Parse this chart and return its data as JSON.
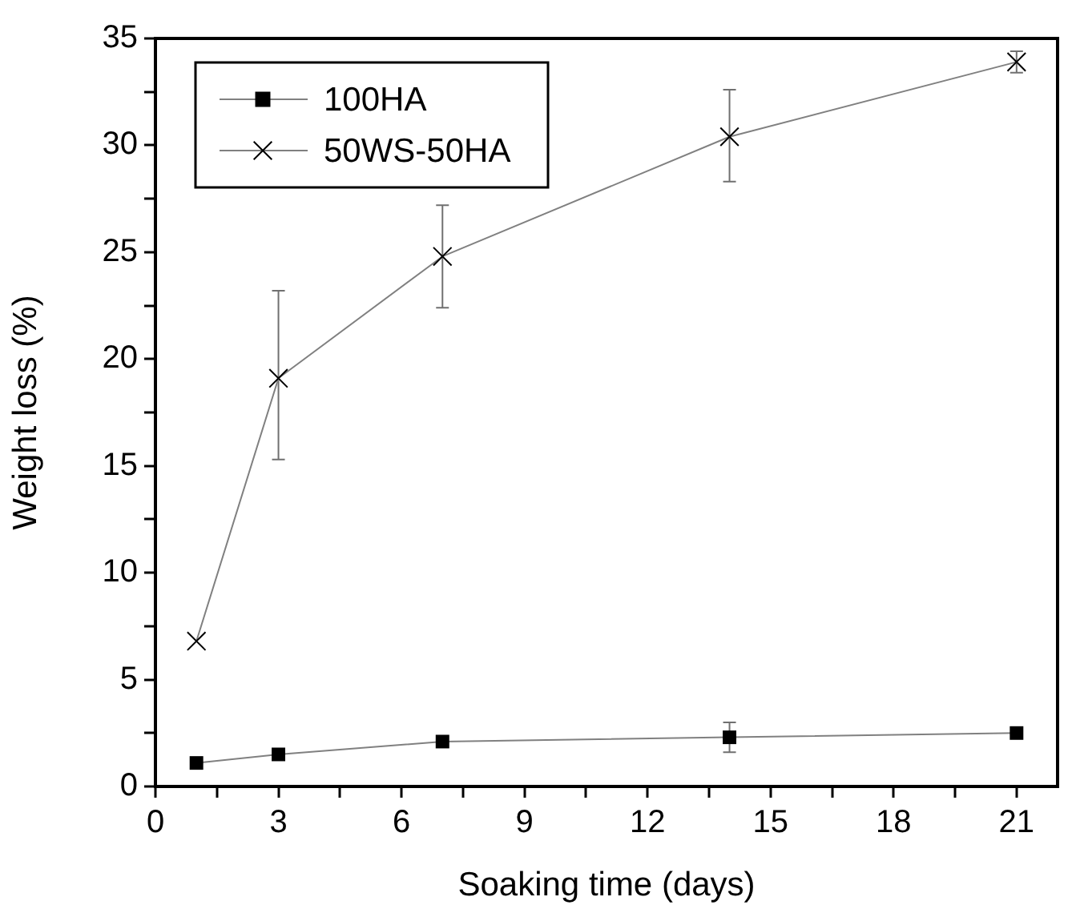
{
  "chart_data": {
    "type": "line",
    "xlabel": "Soaking time (days)",
    "ylabel": "Weight loss (%)",
    "x": [
      1,
      3,
      7,
      14,
      21
    ],
    "series": [
      {
        "name": "100HA",
        "color": "#000000",
        "marker": "square",
        "values": [
          1.1,
          1.5,
          2.1,
          2.3,
          2.5
        ],
        "errors": [
          null,
          null,
          null,
          [
            1.6,
            3.0
          ],
          null
        ]
      },
      {
        "name": "50WS-50HA",
        "color": "#000000",
        "marker": "cross",
        "values": [
          6.8,
          19.1,
          24.8,
          30.4,
          33.9
        ],
        "errors": [
          null,
          [
            15.3,
            23.2
          ],
          [
            22.4,
            27.2
          ],
          [
            28.3,
            32.6
          ],
          [
            33.4,
            34.4
          ]
        ]
      }
    ],
    "xlim": [
      0,
      22
    ],
    "xticks": [
      0,
      {
        "value": 1.5,
        "label": null
      },
      3,
      {
        "value": 4.5,
        "label": null
      },
      6,
      {
        "value": 7.5,
        "label": null
      },
      9,
      {
        "value": 10.5,
        "label": null
      },
      12,
      {
        "value": 13.5,
        "label": null
      },
      15,
      {
        "value": 16.5,
        "label": null
      },
      18,
      {
        "value": 19.5,
        "label": null
      },
      21
    ],
    "ylim": [
      0,
      35
    ],
    "yticks": [
      0,
      {
        "value": 2.5,
        "label": null
      },
      5,
      {
        "value": 7.5,
        "label": null
      },
      10,
      {
        "value": 12.5,
        "label": null
      },
      15,
      {
        "value": 17.5,
        "label": null
      },
      20,
      {
        "value": 22.5,
        "label": null
      },
      25,
      {
        "value": 27.5,
        "label": null
      },
      30,
      {
        "value": 32.5,
        "label": null
      },
      35
    ],
    "grid": false,
    "legend": "top left",
    "line_style": "solid"
  }
}
